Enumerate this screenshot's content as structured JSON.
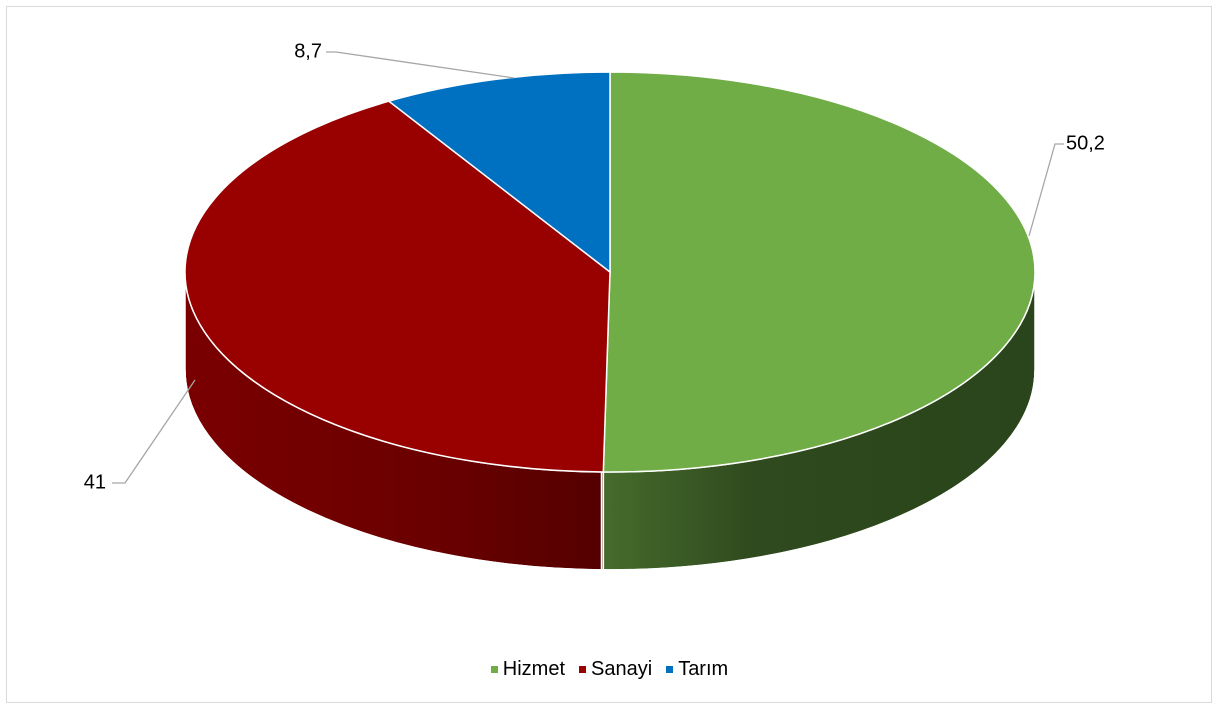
{
  "chart_data": {
    "type": "pie",
    "three_d": true,
    "legend_position": "bottom",
    "series": [
      {
        "name": "Hizmet",
        "value": 50.2,
        "label": "50,2",
        "color": "#70ad47"
      },
      {
        "name": "Sanayi",
        "value": 41,
        "label": "41",
        "color": "#990000"
      },
      {
        "name": "Tarım",
        "value": 8.7,
        "label": "8,7",
        "color": "#0070c0"
      }
    ]
  }
}
